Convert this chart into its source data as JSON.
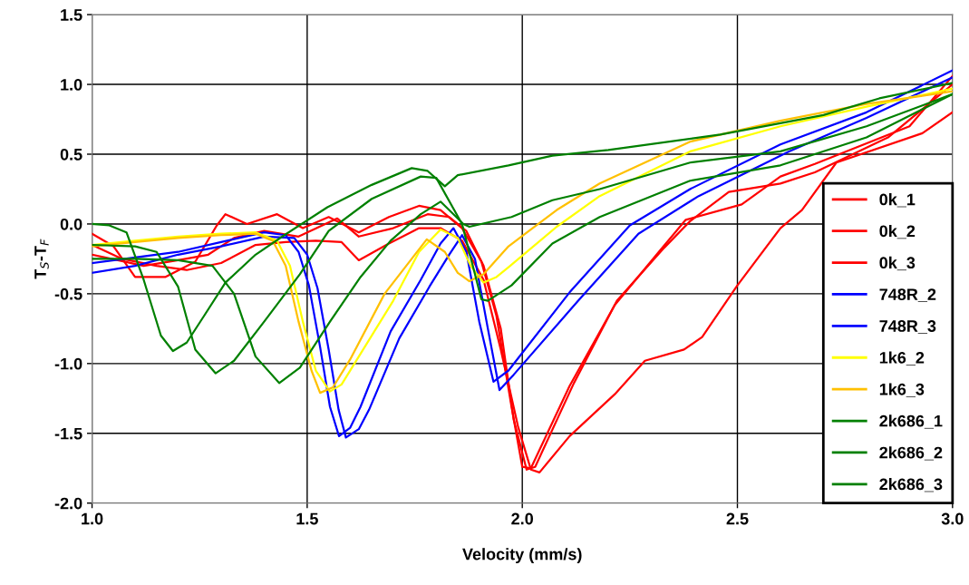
{
  "chart_data": {
    "type": "line",
    "xlabel": "Velocity (mm/s)",
    "ylabel": "T$_{S}$-T$_{F}$",
    "xlim": [
      1.0,
      3.0
    ],
    "ylim": [
      -2.0,
      1.5
    ],
    "xticks": [
      {
        "value": 1.0,
        "label": "1.0"
      },
      {
        "value": 1.5,
        "label": "1.5"
      },
      {
        "value": 2.0,
        "label": "2.0"
      },
      {
        "value": 2.5,
        "label": "2.5"
      },
      {
        "value": 3.0,
        "label": "3.0"
      }
    ],
    "yticks": [
      {
        "value": -2.0,
        "label": "-2.0"
      },
      {
        "value": -1.5,
        "label": "-1.5"
      },
      {
        "value": -1.0,
        "label": "-1.0"
      },
      {
        "value": -0.5,
        "label": "-0.5"
      },
      {
        "value": 0.0,
        "label": "0.0"
      },
      {
        "value": 0.5,
        "label": "0.5"
      },
      {
        "value": 1.0,
        "label": "1.0"
      },
      {
        "value": 1.5,
        "label": "1.5"
      }
    ],
    "grid": true,
    "legend": "bottom right",
    "marker": "none",
    "line_style": "solid",
    "series": [
      {
        "name": "0k_1",
        "color": "#ff0000",
        "x": [
          1.0,
          1.05,
          1.1,
          1.17,
          1.24,
          1.29,
          1.31,
          1.36,
          1.43,
          1.49,
          1.55,
          1.62,
          1.69,
          1.76,
          1.81,
          1.86,
          1.905,
          1.94,
          1.975,
          2.0,
          2.02,
          2.11,
          2.215,
          2.32,
          2.38,
          2.51,
          2.6,
          2.68,
          2.9,
          3.0
        ],
        "values": [
          -0.07,
          -0.16,
          -0.38,
          -0.38,
          -0.27,
          -0.01,
          0.07,
          0.0,
          0.07,
          -0.03,
          0.05,
          -0.06,
          0.05,
          0.13,
          0.1,
          -0.03,
          -0.27,
          -0.66,
          -1.31,
          -1.74,
          -1.75,
          -1.16,
          -0.58,
          -0.19,
          0.03,
          0.14,
          0.34,
          0.43,
          0.7,
          1.06
        ]
      },
      {
        "name": "0k_2",
        "color": "#ff0000",
        "x": [
          1.0,
          1.06,
          1.12,
          1.2,
          1.27,
          1.33,
          1.4,
          1.48,
          1.57,
          1.62,
          1.7,
          1.78,
          1.83,
          1.87,
          1.91,
          1.95,
          1.98,
          2.01,
          2.03,
          2.12,
          2.22,
          2.33,
          2.39,
          2.48,
          2.6,
          2.68,
          2.85,
          3.0
        ],
        "values": [
          -0.22,
          -0.26,
          -0.3,
          -0.26,
          -0.22,
          -0.1,
          -0.05,
          -0.09,
          0.04,
          -0.09,
          -0.03,
          0.07,
          0.05,
          -0.05,
          -0.3,
          -0.75,
          -1.4,
          -1.76,
          -1.74,
          -1.14,
          -0.55,
          -0.17,
          0.02,
          0.23,
          0.29,
          0.37,
          0.62,
          1.0
        ]
      },
      {
        "name": "0k_3",
        "color": "#ff0000",
        "x": [
          1.0,
          1.07,
          1.15,
          1.22,
          1.3,
          1.38,
          1.45,
          1.52,
          1.58,
          1.62,
          1.69,
          1.76,
          1.81,
          1.86,
          1.91,
          1.95,
          1.99,
          2.02,
          2.04,
          2.11,
          2.215,
          2.285,
          2.376,
          2.418,
          2.46,
          2.5,
          2.6,
          2.65,
          2.73,
          2.93,
          3.0
        ],
        "values": [
          -0.15,
          -0.25,
          -0.3,
          -0.33,
          -0.28,
          -0.15,
          -0.13,
          -0.12,
          -0.13,
          -0.26,
          -0.14,
          -0.03,
          -0.03,
          -0.12,
          -0.4,
          -0.9,
          -1.45,
          -1.76,
          -1.78,
          -1.52,
          -1.22,
          -0.98,
          -0.9,
          -0.81,
          -0.62,
          -0.44,
          -0.03,
          0.1,
          0.44,
          0.65,
          0.8
        ]
      },
      {
        "name": "748R_2",
        "color": "#0000ff",
        "x": [
          1.0,
          1.1,
          1.2,
          1.3,
          1.4,
          1.45,
          1.48,
          1.504,
          1.53,
          1.553,
          1.574,
          1.6,
          1.624,
          1.694,
          1.764,
          1.81,
          1.84,
          1.87,
          1.9,
          1.933,
          1.968,
          2.11,
          2.25,
          2.39,
          2.6,
          2.8,
          3.0
        ],
        "values": [
          -0.28,
          -0.24,
          -0.2,
          -0.13,
          -0.06,
          -0.08,
          -0.2,
          -0.44,
          -0.88,
          -1.31,
          -1.52,
          -1.46,
          -1.31,
          -0.77,
          -0.4,
          -0.14,
          -0.03,
          -0.2,
          -0.7,
          -1.13,
          -1.05,
          -0.49,
          -0.01,
          0.25,
          0.57,
          0.8,
          1.1
        ]
      },
      {
        "name": "748R_3",
        "color": "#0000ff",
        "x": [
          1.0,
          1.1,
          1.2,
          1.3,
          1.4,
          1.47,
          1.5,
          1.524,
          1.55,
          1.573,
          1.59,
          1.62,
          1.644,
          1.714,
          1.784,
          1.83,
          1.86,
          1.89,
          1.92,
          1.947,
          1.98,
          2.13,
          2.27,
          2.41,
          2.62,
          2.8,
          3.0
        ],
        "values": [
          -0.35,
          -0.3,
          -0.22,
          -0.16,
          -0.09,
          -0.1,
          -0.22,
          -0.46,
          -0.9,
          -1.33,
          -1.53,
          -1.47,
          -1.33,
          -0.82,
          -0.45,
          -0.22,
          -0.08,
          -0.25,
          -0.75,
          -1.19,
          -1.08,
          -0.55,
          -0.07,
          0.2,
          0.52,
          0.76,
          1.05
        ]
      },
      {
        "name": "1k6_2",
        "color": "#ffff00",
        "x": [
          1.0,
          1.1,
          1.2,
          1.3,
          1.38,
          1.43,
          1.46,
          1.49,
          1.52,
          1.553,
          1.58,
          1.62,
          1.7,
          1.76,
          1.81,
          1.85,
          1.88,
          1.91,
          1.94,
          1.968,
          2.08,
          2.18,
          2.39,
          2.6,
          2.8,
          3.0
        ],
        "values": [
          -0.15,
          -0.12,
          -0.09,
          -0.07,
          -0.06,
          -0.12,
          -0.3,
          -0.7,
          -1.05,
          -1.2,
          -1.15,
          -0.95,
          -0.55,
          -0.2,
          -0.04,
          -0.1,
          -0.3,
          -0.42,
          -0.38,
          -0.31,
          -0.02,
          0.2,
          0.52,
          0.7,
          0.84,
          0.97
        ]
      },
      {
        "name": "1k6_3",
        "color": "#ffc000",
        "x": [
          1.0,
          1.1,
          1.2,
          1.3,
          1.38,
          1.42,
          1.45,
          1.48,
          1.51,
          1.53,
          1.56,
          1.6,
          1.68,
          1.778,
          1.82,
          1.85,
          1.877,
          1.91,
          1.968,
          2.08,
          2.18,
          2.39,
          2.6,
          2.8,
          3.0
        ],
        "values": [
          -0.16,
          -0.13,
          -0.1,
          -0.08,
          -0.07,
          -0.12,
          -0.3,
          -0.7,
          -1.05,
          -1.21,
          -1.17,
          -0.97,
          -0.5,
          -0.11,
          -0.2,
          -0.35,
          -0.41,
          -0.36,
          -0.16,
          0.1,
          0.29,
          0.59,
          0.74,
          0.86,
          0.95
        ]
      },
      {
        "name": "2k686_1",
        "color": "#008000",
        "x": [
          1.0,
          1.04,
          1.08,
          1.12,
          1.16,
          1.188,
          1.22,
          1.26,
          1.31,
          1.38,
          1.447,
          1.547,
          1.65,
          1.743,
          1.78,
          1.82,
          1.85,
          1.968,
          2.07,
          2.2,
          2.46,
          2.7,
          2.83,
          3.0
        ],
        "values": [
          0.0,
          -0.01,
          -0.06,
          -0.4,
          -0.8,
          -0.91,
          -0.85,
          -0.66,
          -0.42,
          -0.22,
          -0.08,
          0.12,
          0.28,
          0.4,
          0.38,
          0.27,
          0.35,
          0.42,
          0.49,
          0.53,
          0.64,
          0.78,
          0.9,
          1.01
        ]
      },
      {
        "name": "2k686_2",
        "color": "#008000",
        "x": [
          1.0,
          1.1,
          1.15,
          1.2,
          1.24,
          1.287,
          1.33,
          1.4,
          1.483,
          1.55,
          1.65,
          1.764,
          1.8,
          1.86,
          1.905,
          1.92,
          1.975,
          2.07,
          2.18,
          2.39,
          2.6,
          2.8,
          3.0
        ],
        "values": [
          -0.15,
          -0.16,
          -0.2,
          -0.45,
          -0.9,
          -1.07,
          -0.98,
          -0.7,
          -0.36,
          -0.05,
          0.18,
          0.34,
          0.33,
          0.0,
          -0.54,
          -0.55,
          -0.44,
          -0.14,
          0.05,
          0.31,
          0.42,
          0.62,
          0.93
        ]
      },
      {
        "name": "2k686_3",
        "color": "#008000",
        "x": [
          1.0,
          1.1,
          1.2,
          1.28,
          1.33,
          1.38,
          1.435,
          1.483,
          1.553,
          1.624,
          1.694,
          1.764,
          1.81,
          1.863,
          1.877,
          1.975,
          2.07,
          2.18,
          2.39,
          2.6,
          2.8,
          3.0
        ],
        "values": [
          -0.25,
          -0.25,
          -0.26,
          -0.3,
          -0.5,
          -0.95,
          -1.14,
          -1.03,
          -0.7,
          -0.38,
          -0.12,
          0.07,
          0.16,
          0.0,
          -0.02,
          0.05,
          0.17,
          0.25,
          0.44,
          0.52,
          0.7,
          0.93
        ]
      }
    ]
  }
}
